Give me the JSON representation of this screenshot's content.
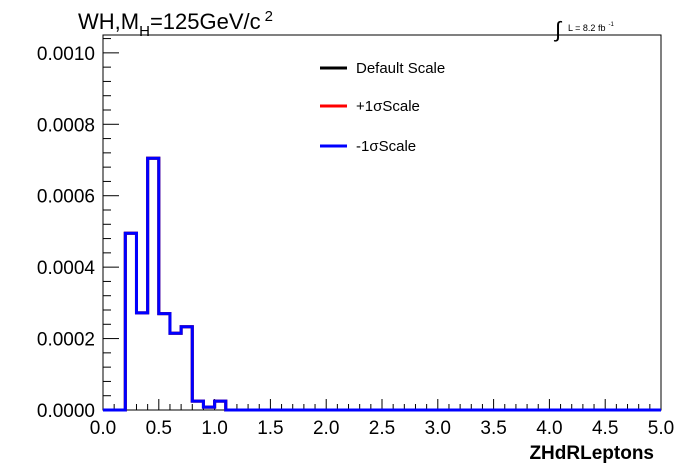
{
  "chart_data": {
    "type": "histogram",
    "title": "WH,M_H=125GeV/c^2",
    "title_parts": {
      "main": "WH,M",
      "sub": "H",
      "rest": "=125GeV/c",
      "sup": "2"
    },
    "luminosity": {
      "symbol": "∫",
      "text": "L = 8.2 fb",
      "sup": "-1"
    },
    "xlabel": "ZHdRLeptons",
    "xlim": [
      0.0,
      5.0
    ],
    "ylim": [
      0.0,
      0.00105
    ],
    "xticks": [
      "0.0",
      "0.5",
      "1.0",
      "1.5",
      "2.0",
      "2.5",
      "3.0",
      "3.5",
      "4.0",
      "4.5",
      "5.0"
    ],
    "xtick_values": [
      0.0,
      0.5,
      1.0,
      1.5,
      2.0,
      2.5,
      3.0,
      3.5,
      4.0,
      4.5,
      5.0
    ],
    "yticks": [
      "0.0000",
      "0.0002",
      "0.0004",
      "0.0006",
      "0.0008",
      "0.0010"
    ],
    "ytick_values": [
      0.0,
      0.0002,
      0.0004,
      0.0006,
      0.0008,
      0.001
    ],
    "bin_edges": [
      0.0,
      0.1,
      0.2,
      0.3,
      0.4,
      0.5,
      0.6,
      0.7,
      0.8,
      0.9,
      1.0,
      1.1,
      1.2,
      5.0
    ],
    "series": [
      {
        "name": "Default Scale",
        "color": "#000000",
        "values": [
          0,
          0,
          0.000495,
          0.000272,
          0.000705,
          0.00027,
          0.000215,
          0.000233,
          2.5e-05,
          8e-06,
          2.5e-05,
          0,
          0
        ]
      },
      {
        "name": "+1σScale",
        "color": "#ff0000",
        "values": [
          0,
          0,
          0.000495,
          0.000272,
          0.000705,
          0.00027,
          0.000215,
          0.000233,
          2.5e-05,
          8e-06,
          2.5e-05,
          0,
          0
        ]
      },
      {
        "name": "-1σScale",
        "color": "#0000ff",
        "values": [
          0,
          0,
          0.000495,
          0.000272,
          0.000705,
          0.00027,
          0.000215,
          0.000233,
          2.5e-05,
          8e-06,
          2.5e-05,
          0,
          0
        ]
      }
    ],
    "legend_position": "top-right",
    "grid": false
  }
}
